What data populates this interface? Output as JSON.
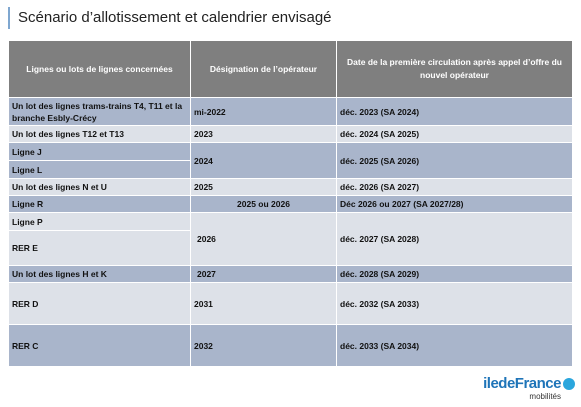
{
  "header": {
    "title": "Scénario d’allotissement et calendrier envisagé"
  },
  "table": {
    "columns": [
      "Lignes ou lots de lignes concernées",
      "Désignation de l’opérateur",
      "Date de la première circulation après appel d’offre du nouvel opérateur"
    ],
    "rows": [
      [
        "Un lot des lignes trams-trains T4, T11 et la branche Esbly-Crécy",
        "mi-2022",
        "déc. 2023 (SA 2024)"
      ],
      [
        "Un lot des lignes T12 et T13",
        "2023",
        "déc. 2024 (SA 2025)"
      ],
      [
        "Ligne J",
        "2024",
        "déc. 2025 (SA 2026)"
      ],
      [
        "Ligne L"
      ],
      [
        "Un lot des lignes N et U",
        "2025",
        "déc. 2026 (SA 2027)"
      ],
      [
        "Ligne R",
        "2025 ou 2026",
        "Déc 2026 ou 2027 (SA 2027/28)"
      ],
      [
        "Ligne P",
        "2026",
        "déc. 2027 (SA 2028)"
      ],
      [
        "RER E"
      ],
      [
        "Un lot des lignes H et K",
        "2027",
        "déc. 2028 (SA 2029)"
      ],
      [
        "RER D",
        "2031",
        "déc. 2032 (SA 2033)"
      ],
      [
        "RER C",
        "2032",
        "déc. 2033 (SA 2034)"
      ]
    ]
  },
  "logo": {
    "brand": "iledeFrance",
    "sub": "mobilités"
  }
}
